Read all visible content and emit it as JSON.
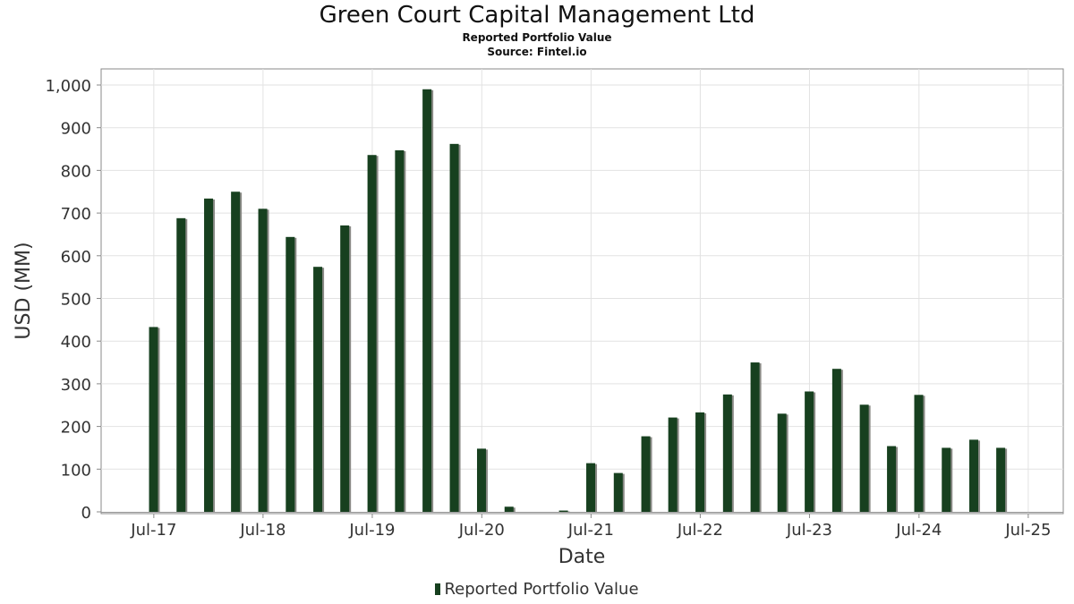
{
  "chart_data": {
    "type": "bar",
    "title": "Green Court Capital Management Ltd",
    "subtitle": "Reported Portfolio Value",
    "source": "Source: Fintel.io",
    "xlabel": "Date",
    "ylabel": "USD (MM)",
    "ylim": [
      0,
      1050
    ],
    "yticks": [
      0,
      100,
      200,
      300,
      400,
      500,
      600,
      700,
      800,
      900,
      1000
    ],
    "ytick_labels": [
      "0",
      "100",
      "200",
      "300",
      "400",
      "500",
      "600",
      "700",
      "800",
      "900",
      "1,000"
    ],
    "xlim": [
      "2017-01-06",
      "2025-10-26"
    ],
    "xticks": [
      "2017-07-01",
      "2018-07-01",
      "2019-07-01",
      "2020-07-01",
      "2021-07-01",
      "2022-07-01",
      "2023-07-01",
      "2024-07-01",
      "2025-07-01"
    ],
    "xtick_labels": [
      "Jul-17",
      "Jul-18",
      "Jul-19",
      "Jul-20",
      "Jul-21",
      "Jul-22",
      "Jul-23",
      "Jul-24",
      "Jul-25"
    ],
    "grid": true,
    "legend_position": "bottom",
    "colors": {
      "bar": "#17401f",
      "shadow": "#8a8a86",
      "grid": "#e2e2e2",
      "axis": "#888888"
    },
    "series": [
      {
        "name": "Reported Portfolio Value",
        "points": [
          [
            "2017-06-30",
            433
          ],
          [
            "2017-09-30",
            688
          ],
          [
            "2017-12-31",
            734
          ],
          [
            "2018-03-31",
            750
          ],
          [
            "2018-06-30",
            710
          ],
          [
            "2018-09-30",
            644
          ],
          [
            "2018-12-31",
            574
          ],
          [
            "2019-03-31",
            671
          ],
          [
            "2019-06-30",
            836
          ],
          [
            "2019-09-30",
            847
          ],
          [
            "2019-12-31",
            990
          ],
          [
            "2020-03-31",
            862
          ],
          [
            "2020-06-30",
            148
          ],
          [
            "2020-09-30",
            12
          ],
          [
            "2021-03-31",
            3
          ],
          [
            "2021-06-30",
            114
          ],
          [
            "2021-09-30",
            91
          ],
          [
            "2021-12-31",
            177
          ],
          [
            "2022-03-31",
            221
          ],
          [
            "2022-06-30",
            233
          ],
          [
            "2022-09-30",
            275
          ],
          [
            "2022-12-31",
            350
          ],
          [
            "2023-03-31",
            230
          ],
          [
            "2023-06-30",
            282
          ],
          [
            "2023-09-30",
            335
          ],
          [
            "2023-12-31",
            251
          ],
          [
            "2024-03-31",
            154
          ],
          [
            "2024-06-30",
            274
          ],
          [
            "2024-09-30",
            150
          ],
          [
            "2024-12-31",
            169
          ],
          [
            "2025-03-31",
            150
          ]
        ]
      }
    ]
  }
}
